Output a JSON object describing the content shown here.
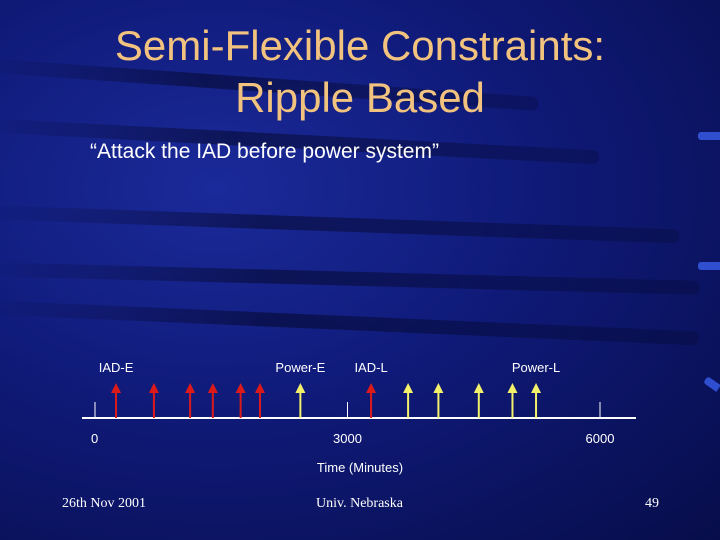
{
  "slide": {
    "title_line1": "Semi-Flexible Constraints:",
    "title_line2": "Ripple Based",
    "subtitle": "“Attack the IAD before power system”"
  },
  "timeline": {
    "axis_label": "Time (Minutes)",
    "range": [
      0,
      6000
    ],
    "ticks": [
      {
        "value": 0,
        "label": "0"
      },
      {
        "value": 3000,
        "label": "3000"
      },
      {
        "value": 6000,
        "label": "6000"
      }
    ],
    "event_labels": [
      {
        "text": "IAD-E",
        "value": 250
      },
      {
        "text": "Power-E",
        "value": 2440
      },
      {
        "text": "IAD-L",
        "value": 3280
      },
      {
        "text": "Power-L",
        "value": 5240
      }
    ],
    "red_arrows": [
      250,
      700,
      1130,
      1400,
      1730,
      1960,
      3280
    ],
    "yellow_arrows": [
      2440,
      3720,
      4080,
      4560,
      4960,
      5240
    ],
    "colors": {
      "red": "#dd1a1a",
      "yellow": "#f3f06a",
      "axis": "#ffffff"
    }
  },
  "footer": {
    "date": "26th Nov 2001",
    "org": "Univ. Nebraska",
    "page": "49"
  }
}
